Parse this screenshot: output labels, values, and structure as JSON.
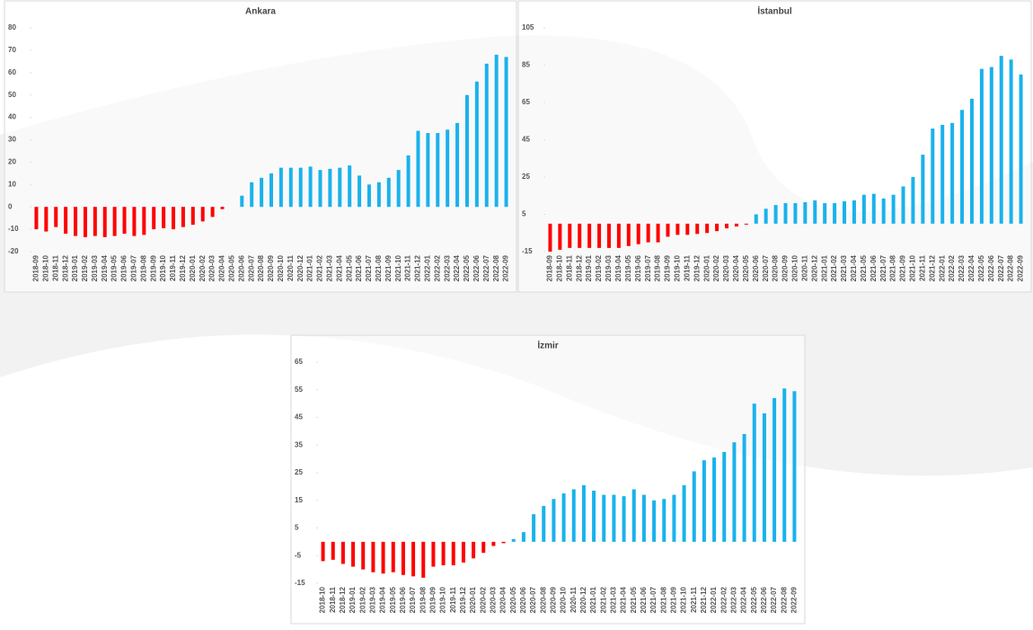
{
  "chart_data": [
    {
      "type": "bar",
      "title": "Ankara",
      "categories": [
        "2018-09",
        "2018-10",
        "2018-11",
        "2018-12",
        "2019-01",
        "2019-02",
        "2019-03",
        "2019-04",
        "2019-05",
        "2019-06",
        "2019-07",
        "2019-08",
        "2019-09",
        "2019-10",
        "2019-11",
        "2019-12",
        "2020-01",
        "2020-02",
        "2020-03",
        "2020-04",
        "2020-05",
        "2020-06",
        "2020-07",
        "2020-08",
        "2020-09",
        "2020-10",
        "2020-11",
        "2020-12",
        "2021-01",
        "2021-02",
        "2021-03",
        "2021-04",
        "2021-05",
        "2021-06",
        "2021-07",
        "2021-08",
        "2021-09",
        "2021-10",
        "2021-11",
        "2021-12",
        "2022-01",
        "2022-02",
        "2022-03",
        "2022-04",
        "2022-05",
        "2022-06",
        "2022-07",
        "2022-08",
        "2022-09"
      ],
      "values": [
        -10,
        -11,
        -9,
        -12,
        -13,
        -13.5,
        -13,
        -13.5,
        -13,
        -12,
        -13,
        -12.5,
        -10,
        -9.5,
        -10,
        -9,
        -8,
        -6.5,
        -4.5,
        -1,
        0,
        5,
        11,
        13,
        15,
        17.5,
        17.5,
        17.5,
        18,
        16.5,
        17,
        17.5,
        18.5,
        14,
        10,
        11,
        13,
        16.5,
        23,
        34,
        33,
        33,
        34.5,
        37.5,
        50,
        56,
        64,
        68,
        67
      ],
      "color": "#1ab2ec",
      "negative_color": "#ff0000",
      "ylim": [
        -20,
        80
      ],
      "yticks": [
        -20,
        -10,
        0,
        10,
        20,
        30,
        40,
        50,
        60,
        70,
        80
      ]
    },
    {
      "type": "bar",
      "title": "İstanbul",
      "categories": [
        "2018-09",
        "2018-10",
        "2018-11",
        "2018-12",
        "2019-01",
        "2019-02",
        "2019-03",
        "2019-04",
        "2019-05",
        "2019-06",
        "2019-07",
        "2019-08",
        "2019-09",
        "2019-10",
        "2019-11",
        "2019-12",
        "2020-01",
        "2020-02",
        "2020-03",
        "2020-04",
        "2020-05",
        "2020-06",
        "2020-07",
        "2020-08",
        "2020-09",
        "2020-10",
        "2020-11",
        "2020-12",
        "2021-01",
        "2021-02",
        "2021-03",
        "2021-04",
        "2021-05",
        "2021-06",
        "2021-07",
        "2021-08",
        "2021-09",
        "2021-10",
        "2021-11",
        "2021-12",
        "2022-01",
        "2022-02",
        "2022-03",
        "2022-04",
        "2022-05",
        "2022-06",
        "2022-07",
        "2022-08",
        "2022-09"
      ],
      "values": [
        -15,
        -14,
        -13,
        -13,
        -13,
        -13,
        -13,
        -13,
        -12,
        -11,
        -10,
        -10,
        -7,
        -6,
        -6,
        -5.5,
        -5,
        -4,
        -2.5,
        -1.5,
        -0.5,
        5,
        8,
        10,
        11,
        11,
        11.5,
        12.5,
        11,
        11,
        12,
        12.5,
        15.5,
        16,
        13.5,
        15.5,
        20,
        25,
        37,
        51,
        53,
        54,
        61,
        67,
        83,
        84,
        90,
        88,
        80
      ],
      "color": "#1ab2ec",
      "negative_color": "#ff0000",
      "ylim": [
        -15,
        105
      ],
      "yticks": [
        -15,
        5,
        25,
        45,
        65,
        85,
        105
      ]
    },
    {
      "type": "bar",
      "title": "İzmir",
      "categories": [
        "2018-10",
        "2018-11",
        "2018-12",
        "2019-01",
        "2019-02",
        "2019-03",
        "2019-04",
        "2019-05",
        "2019-06",
        "2019-07",
        "2019-08",
        "2019-09",
        "2019-10",
        "2019-11",
        "2019-12",
        "2020-01",
        "2020-02",
        "2020-03",
        "2020-04",
        "2020-05",
        "2020-06",
        "2020-07",
        "2020-08",
        "2020-09",
        "2020-10",
        "2020-11",
        "2020-12",
        "2021-01",
        "2021-02",
        "2021-03",
        "2021-04",
        "2021-05",
        "2021-06",
        "2021-07",
        "2021-08",
        "2021-09",
        "2021-10",
        "2021-11",
        "2021-12",
        "2022-01",
        "2022-02",
        "2022-03",
        "2022-04",
        "2022-05",
        "2022-06",
        "2022-07",
        "2022-08",
        "2022-09"
      ],
      "values": [
        -7,
        -6.5,
        -8,
        -9,
        -10,
        -11,
        -11.5,
        -11,
        -12,
        -12.5,
        -13,
        -9,
        -8.5,
        -8.5,
        -7.5,
        -6,
        -4,
        -1.5,
        -0.5,
        1,
        3.5,
        10,
        13,
        15.5,
        17.5,
        19,
        20.5,
        18.5,
        17,
        17,
        16.5,
        19,
        17,
        15,
        15.5,
        17,
        20.5,
        25.5,
        29.5,
        30.5,
        32.5,
        36,
        39,
        50,
        46.5,
        52,
        55.5,
        54.5
      ],
      "color": "#1ab2ec",
      "negative_color": "#ff0000",
      "ylim": [
        -15,
        65
      ],
      "yticks": [
        -15,
        -5,
        5,
        15,
        25,
        35,
        45,
        55,
        65
      ]
    }
  ]
}
